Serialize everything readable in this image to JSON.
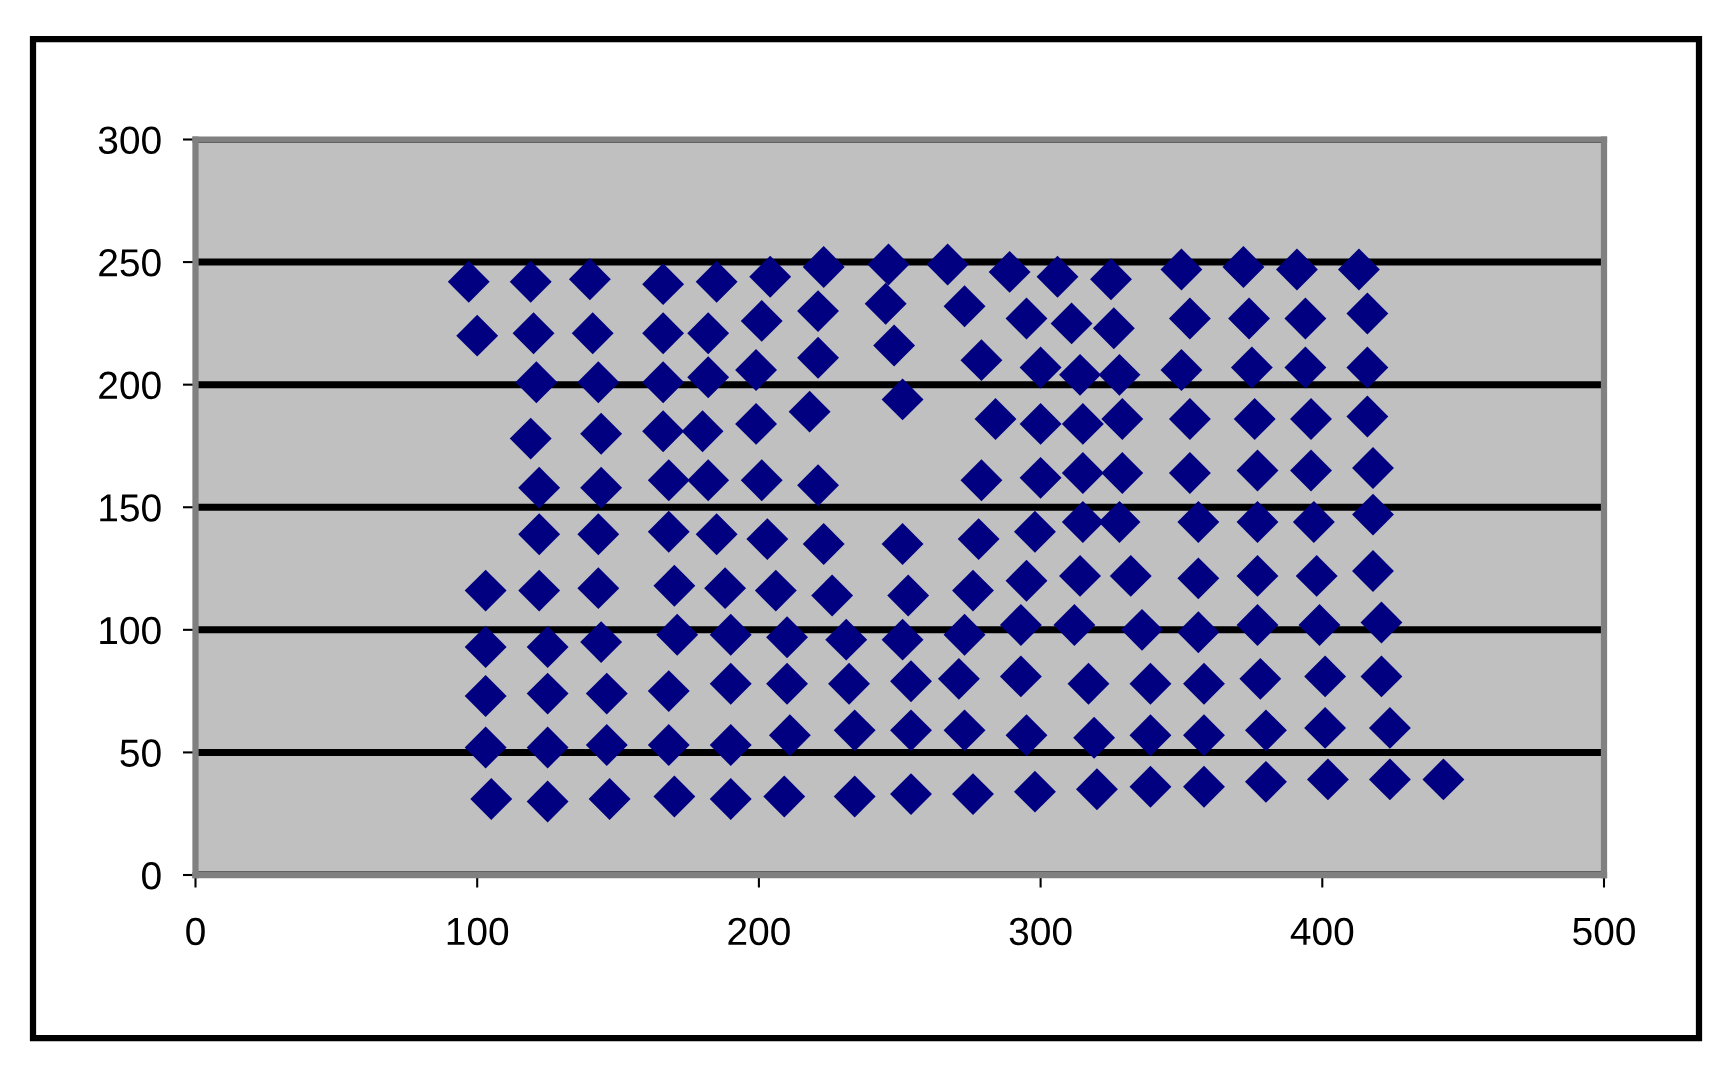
{
  "chart_data": {
    "type": "scatter",
    "marker": "diamond",
    "grid": "y",
    "xlim": [
      0,
      500
    ],
    "ylim": [
      0,
      300
    ],
    "xticks": [
      0,
      100,
      200,
      300,
      400,
      500
    ],
    "yticks": [
      0,
      50,
      100,
      150,
      200,
      250,
      300
    ],
    "series": [
      {
        "color": "#000080",
        "x": [
          97,
          100,
          103,
          103,
          103,
          103,
          105,
          119,
          120,
          121,
          119,
          122,
          122,
          122,
          125,
          125,
          125,
          125,
          140,
          141,
          143,
          144,
          144,
          143,
          143,
          144,
          146,
          146,
          147,
          166,
          166,
          166,
          166,
          168,
          168,
          170,
          171,
          168,
          168,
          170,
          185,
          182,
          182,
          180,
          182,
          185,
          188,
          190,
          190,
          190,
          190,
          204,
          201,
          199,
          199,
          201,
          203,
          206,
          210,
          210,
          211,
          209,
          223,
          221,
          221,
          218,
          221,
          223,
          226,
          231,
          232,
          234,
          234,
          246,
          245,
          248,
          251,
          251,
          253,
          251,
          254,
          254,
          254,
          267,
          273,
          279,
          284,
          279,
          278,
          276,
          273,
          271,
          273,
          276,
          289,
          295,
          300,
          300,
          300,
          298,
          295,
          293,
          293,
          295,
          298,
          306,
          311,
          314,
          315,
          315,
          315,
          314,
          312,
          317,
          319,
          320,
          325,
          326,
          328,
          329,
          329,
          328,
          332,
          336,
          339,
          339,
          339,
          350,
          353,
          350,
          353,
          353,
          356,
          356,
          356,
          358,
          358,
          358,
          372,
          374,
          375,
          376,
          377,
          377,
          377,
          377,
          378,
          380,
          380,
          391,
          394,
          394,
          396,
          396,
          397,
          398,
          399,
          401,
          401,
          402,
          413,
          416,
          416,
          416,
          418,
          418,
          418,
          421,
          421,
          424,
          424,
          443
        ],
        "values": [
          242,
          220,
          116,
          93,
          73,
          52,
          31,
          242,
          221,
          201,
          178,
          158,
          139,
          116,
          93,
          74,
          52,
          30,
          243,
          221,
          201,
          180,
          158,
          139,
          117,
          95,
          74,
          53,
          31,
          241,
          221,
          201,
          181,
          161,
          140,
          118,
          98,
          75,
          53,
          32,
          242,
          221,
          203,
          181,
          161,
          139,
          117,
          98,
          78,
          53,
          31,
          244,
          226,
          206,
          184,
          161,
          137,
          116,
          97,
          78,
          57,
          32,
          248,
          230,
          211,
          189,
          159,
          135,
          114,
          96,
          78,
          59,
          32,
          249,
          233,
          216,
          194,
          135,
          114,
          96,
          79,
          59,
          33,
          249,
          232,
          210,
          186,
          161,
          137,
          116,
          98,
          80,
          59,
          33,
          246,
          227,
          207,
          184,
          162,
          140,
          120,
          102,
          81,
          57,
          34,
          244,
          225,
          204,
          184,
          164,
          144,
          122,
          102,
          78,
          56,
          35,
          243,
          223,
          204,
          186,
          164,
          144,
          122,
          100,
          78,
          57,
          36,
          247,
          227,
          206,
          186,
          164,
          144,
          121,
          99,
          78,
          57,
          36,
          248,
          227,
          207,
          186,
          165,
          144,
          122,
          102,
          80,
          59,
          38,
          247,
          227,
          207,
          186,
          165,
          144,
          122,
          102,
          81,
          60,
          39,
          247,
          229,
          207,
          187,
          166,
          147,
          124,
          103,
          81,
          60,
          39,
          39
        ]
      }
    ]
  }
}
